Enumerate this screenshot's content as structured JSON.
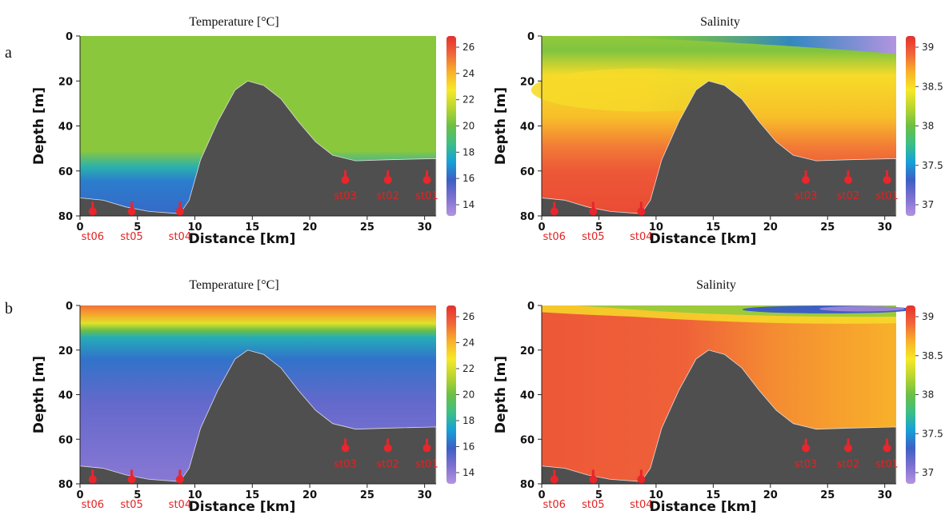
{
  "rows": [
    {
      "label": "a"
    },
    {
      "label": "b"
    }
  ],
  "colors": {
    "bathymetry": "#4f4f4f",
    "station_marker": "#e8262b",
    "colormap": [
      "#b494e0",
      "#7d70d0",
      "#3d5fc4",
      "#17a0d8",
      "#3cbf86",
      "#6cbf45",
      "#b9d530",
      "#f6e928",
      "#f8b12a",
      "#f0663a",
      "#e4302e"
    ]
  },
  "chart_data": [
    {
      "id": "a-temperature",
      "type": "heatmap",
      "title": "Temperature [°C]",
      "xlabel": "Distance [km]",
      "ylabel": "Depth [m]",
      "xlim": [
        0,
        31
      ],
      "ylim": [
        80,
        0
      ],
      "x_ticks": [
        "0",
        "5",
        "10",
        "15",
        "20",
        "25",
        "30"
      ],
      "y_ticks": [
        "0",
        "20",
        "40",
        "60",
        "80"
      ],
      "colorbar": {
        "range": [
          14,
          27
        ],
        "ticks": [
          "26",
          "24",
          "22",
          "20",
          "18",
          "16",
          "14"
        ]
      },
      "field": {
        "surface": 21,
        "upper_layer": 21,
        "thermocline_depth": 55,
        "bottom_layer": 17.2
      },
      "seabed": [
        [
          0,
          72
        ],
        [
          2,
          73
        ],
        [
          4,
          76
        ],
        [
          6,
          78
        ],
        [
          8.7,
          79
        ],
        [
          9.5,
          73
        ],
        [
          10.5,
          55
        ],
        [
          12,
          38
        ],
        [
          13.5,
          24
        ],
        [
          14.6,
          20
        ],
        [
          16,
          22
        ],
        [
          17.5,
          28
        ],
        [
          19,
          38
        ],
        [
          20.5,
          47
        ],
        [
          22,
          53
        ],
        [
          24,
          55.5
        ],
        [
          27,
          55
        ],
        [
          31,
          54.5
        ]
      ],
      "stations": [
        {
          "name": "st06",
          "x": 1.1,
          "depth": 78
        },
        {
          "name": "st05",
          "x": 4.5,
          "depth": 78
        },
        {
          "name": "st04",
          "x": 8.7,
          "depth": 78
        },
        {
          "name": "st03",
          "x": 23.1,
          "depth": 64
        },
        {
          "name": "st02",
          "x": 26.8,
          "depth": 64
        },
        {
          "name": "st01",
          "x": 30.2,
          "depth": 64
        }
      ]
    },
    {
      "id": "a-salinity",
      "type": "heatmap",
      "title": "Salinity",
      "xlabel": "Distance [km]",
      "ylabel": "Depth [m]",
      "xlim": [
        0,
        31
      ],
      "ylim": [
        80,
        0
      ],
      "x_ticks": [
        "0",
        "5",
        "10",
        "15",
        "20",
        "25",
        "30"
      ],
      "y_ticks": [
        "0",
        "20",
        "40",
        "60",
        "80"
      ],
      "colorbar": {
        "range": [
          37,
          39
        ],
        "ticks": [
          "39",
          "38.5",
          "38",
          "37.5",
          "37"
        ]
      },
      "field": {
        "surface_west": 38.1,
        "surface_east": 37.0,
        "mid": 38.3,
        "bottom": 38.85
      },
      "seabed": [
        [
          0,
          72
        ],
        [
          2,
          73
        ],
        [
          4,
          76
        ],
        [
          6,
          78
        ],
        [
          8.7,
          79
        ],
        [
          9.5,
          73
        ],
        [
          10.5,
          55
        ],
        [
          12,
          38
        ],
        [
          13.5,
          24
        ],
        [
          14.6,
          20
        ],
        [
          16,
          22
        ],
        [
          17.5,
          28
        ],
        [
          19,
          38
        ],
        [
          20.5,
          47
        ],
        [
          22,
          53
        ],
        [
          24,
          55.5
        ],
        [
          27,
          55
        ],
        [
          31,
          54.5
        ]
      ],
      "stations": [
        {
          "name": "st06",
          "x": 1.1,
          "depth": 78
        },
        {
          "name": "st05",
          "x": 4.5,
          "depth": 78
        },
        {
          "name": "st04",
          "x": 8.7,
          "depth": 78
        },
        {
          "name": "st03",
          "x": 23.1,
          "depth": 64
        },
        {
          "name": "st02",
          "x": 26.8,
          "depth": 64
        },
        {
          "name": "st01",
          "x": 30.2,
          "depth": 64
        }
      ]
    },
    {
      "id": "b-temperature",
      "type": "heatmap",
      "title": "Temperature [°C]",
      "xlabel": "Distance [km]",
      "ylabel": "Depth [m]",
      "xlim": [
        0,
        31
      ],
      "ylim": [
        80,
        0
      ],
      "x_ticks": [
        "0",
        "5",
        "10",
        "15",
        "20",
        "25",
        "30"
      ],
      "y_ticks": [
        "0",
        "20",
        "40",
        "60",
        "80"
      ],
      "colorbar": {
        "range": [
          14,
          27
        ],
        "ticks": [
          "26",
          "24",
          "22",
          "20",
          "18",
          "16",
          "14"
        ]
      },
      "field": {
        "surface": 25.5,
        "thermocline_depth": 12,
        "mid": 17,
        "bottom": 15
      },
      "seabed": [
        [
          0,
          72
        ],
        [
          2,
          73
        ],
        [
          4,
          76
        ],
        [
          6,
          78
        ],
        [
          8.7,
          79
        ],
        [
          9.5,
          73
        ],
        [
          10.5,
          55
        ],
        [
          12,
          38
        ],
        [
          13.5,
          24
        ],
        [
          14.6,
          20
        ],
        [
          16,
          22
        ],
        [
          17.5,
          28
        ],
        [
          19,
          38
        ],
        [
          20.5,
          47
        ],
        [
          22,
          53
        ],
        [
          24,
          55.5
        ],
        [
          27,
          55
        ],
        [
          31,
          54.5
        ]
      ],
      "stations": [
        {
          "name": "st06",
          "x": 1.1,
          "depth": 78
        },
        {
          "name": "st05",
          "x": 4.5,
          "depth": 78
        },
        {
          "name": "st04",
          "x": 8.7,
          "depth": 78
        },
        {
          "name": "st03",
          "x": 23.1,
          "depth": 64
        },
        {
          "name": "st02",
          "x": 26.8,
          "depth": 64
        },
        {
          "name": "st01",
          "x": 30.2,
          "depth": 64
        }
      ]
    },
    {
      "id": "b-salinity",
      "type": "heatmap",
      "title": "Salinity",
      "xlabel": "Distance [km]",
      "ylabel": "Depth [m]",
      "xlim": [
        0,
        31
      ],
      "ylim": [
        80,
        0
      ],
      "x_ticks": [
        "0",
        "5",
        "10",
        "15",
        "20",
        "25",
        "30"
      ],
      "y_ticks": [
        "0",
        "20",
        "40",
        "60",
        "80"
      ],
      "colorbar": {
        "range": [
          37,
          39
        ],
        "ticks": [
          "39",
          "38.5",
          "38",
          "37.5",
          "37"
        ]
      },
      "field": {
        "surface_west": 38.1,
        "surface_east": 37.1,
        "west_body": 38.85,
        "east_body": 38.6
      },
      "seabed": [
        [
          0,
          72
        ],
        [
          2,
          73
        ],
        [
          4,
          76
        ],
        [
          6,
          78
        ],
        [
          8.7,
          79
        ],
        [
          9.5,
          73
        ],
        [
          10.5,
          55
        ],
        [
          12,
          38
        ],
        [
          13.5,
          24
        ],
        [
          14.6,
          20
        ],
        [
          16,
          22
        ],
        [
          17.5,
          28
        ],
        [
          19,
          38
        ],
        [
          20.5,
          47
        ],
        [
          22,
          53
        ],
        [
          24,
          55.5
        ],
        [
          27,
          55
        ],
        [
          31,
          54.5
        ]
      ],
      "stations": [
        {
          "name": "st06",
          "x": 1.1,
          "depth": 78
        },
        {
          "name": "st05",
          "x": 4.5,
          "depth": 78
        },
        {
          "name": "st04",
          "x": 8.7,
          "depth": 78
        },
        {
          "name": "st03",
          "x": 23.1,
          "depth": 64
        },
        {
          "name": "st02",
          "x": 26.8,
          "depth": 64
        },
        {
          "name": "st01",
          "x": 30.2,
          "depth": 64
        }
      ]
    }
  ]
}
